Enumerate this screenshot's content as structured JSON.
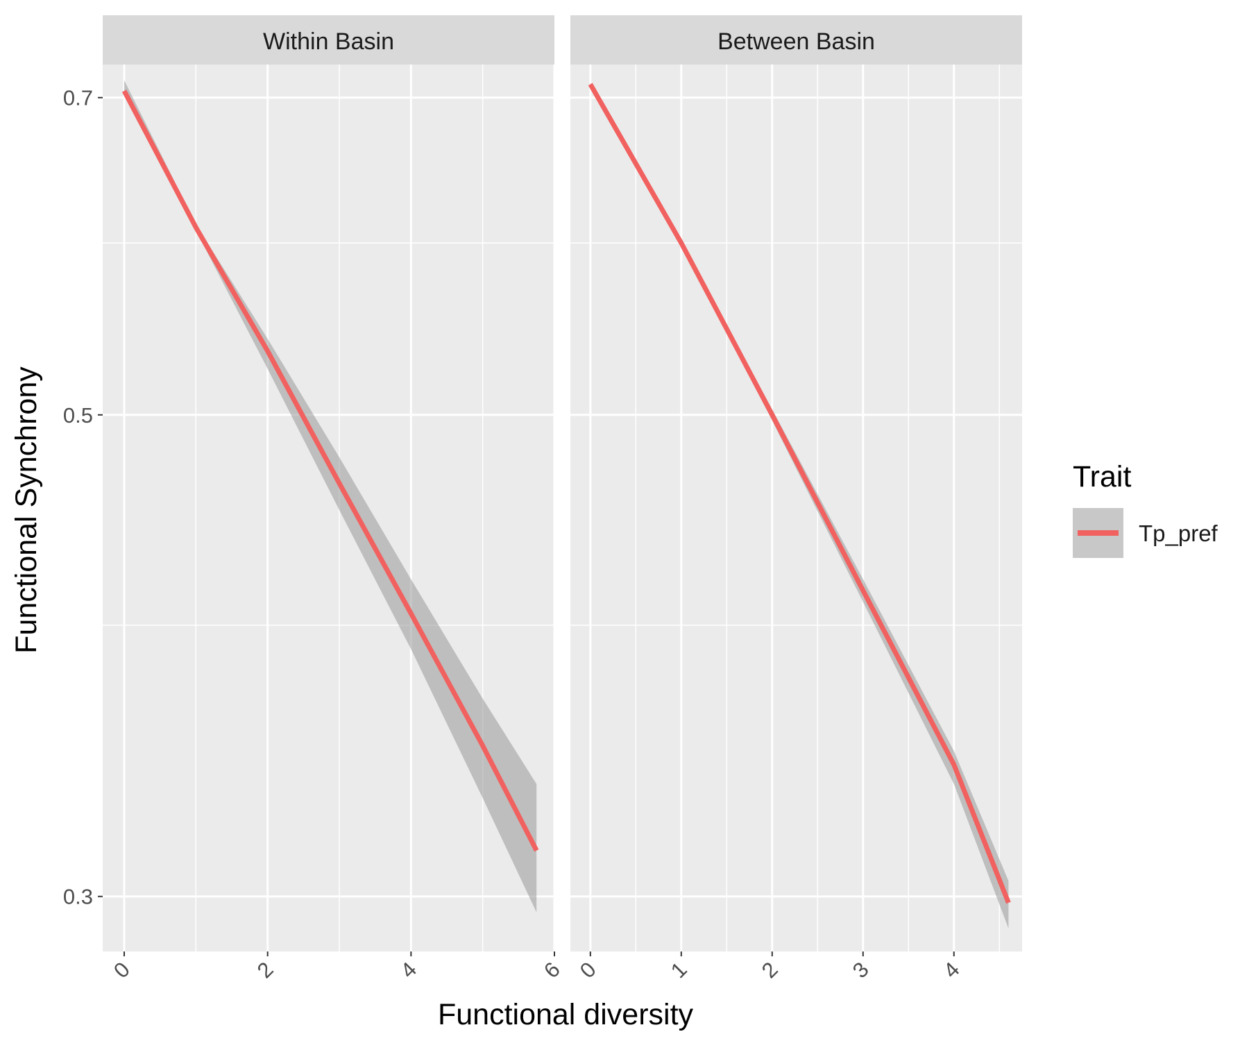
{
  "chart_data": {
    "type": "line",
    "xlabel": "Functional diversity",
    "ylabel": "Functional Synchrony",
    "y_scale": "log",
    "ylim": [
      0.283,
      0.725
    ],
    "y_ticks": [
      0.3,
      0.5,
      0.7
    ],
    "y_tick_labels": [
      "0.3",
      "0.5",
      "0.7"
    ],
    "y_minor_gridlines": [
      0.4,
      0.6
    ],
    "grid": true,
    "legend": {
      "title": "Trait",
      "position": "right",
      "entries": [
        {
          "label": "Tp_pref",
          "color": "#F0615F"
        }
      ]
    },
    "line_color": "#F0615F",
    "ribbon_color": "#999999",
    "panels": [
      {
        "strip_label": "Within Basin",
        "xlim": [
          -0.3,
          6.0
        ],
        "x_ticks": [
          0,
          2,
          4,
          6
        ],
        "x_tick_labels": [
          "0",
          "2",
          "4",
          "6"
        ],
        "x_minor_gridlines": [
          1,
          3,
          5
        ],
        "series": [
          {
            "name": "Tp_pref",
            "x": [
              0,
              1,
              2,
              3,
              4,
              5,
              5.75
            ],
            "y": [
              0.705,
              0.61,
              0.535,
              0.465,
              0.405,
              0.352,
              0.315
            ],
            "lower": [
              0.703,
              0.608,
              0.525,
              0.452,
              0.39,
              0.333,
              0.295
            ],
            "upper": [
              0.713,
              0.612,
              0.542,
              0.478,
              0.42,
              0.37,
              0.338
            ]
          }
        ]
      },
      {
        "strip_label": "Between Basin",
        "xlim": [
          -0.22,
          4.75
        ],
        "x_ticks": [
          0,
          1,
          2,
          3,
          4
        ],
        "x_tick_labels": [
          "0",
          "1",
          "2",
          "3",
          "4"
        ],
        "x_minor_gridlines": [
          0.5,
          1.5,
          2.5,
          3.5,
          4.5
        ],
        "series": [
          {
            "name": "Tp_pref",
            "x": [
              0,
              1,
              2,
              3,
              4,
              4.6
            ],
            "y": [
              0.71,
              0.6,
              0.5,
              0.415,
              0.345,
              0.298
            ],
            "lower": [
              0.709,
              0.599,
              0.497,
              0.41,
              0.338,
              0.29
            ],
            "upper": [
              0.711,
              0.601,
              0.503,
              0.42,
              0.35,
              0.305
            ]
          }
        ]
      }
    ]
  }
}
